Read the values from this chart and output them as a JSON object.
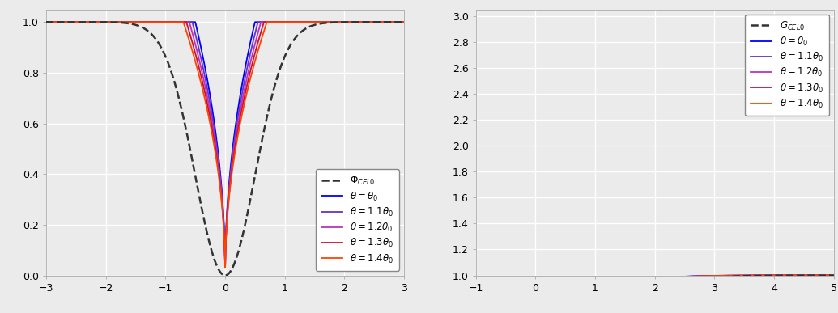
{
  "left_xlim": [
    -3,
    3
  ],
  "left_ylim": [
    0,
    1.05
  ],
  "left_xticks": [
    -3,
    -2,
    -1,
    0,
    1,
    2,
    3
  ],
  "left_yticks": [
    0.0,
    0.2,
    0.4,
    0.6,
    0.8,
    1.0
  ],
  "right_xlim": [
    -1,
    5
  ],
  "right_ylim": [
    1.0,
    3.05
  ],
  "right_xticks": [
    -1,
    0,
    1,
    2,
    3,
    4,
    5
  ],
  "right_yticks": [
    1.0,
    1.2,
    1.4,
    1.6,
    1.8,
    2.0,
    2.2,
    2.4,
    2.6,
    2.8,
    3.0
  ],
  "theta0": 0.5,
  "p": 0.5,
  "thetas_mult": [
    1.0,
    1.1,
    1.2,
    1.3,
    1.4
  ],
  "colors": [
    "#0000FF",
    "#6633CC",
    "#BB33BB",
    "#CC1133",
    "#FF4400"
  ],
  "dashed_color": "#333333",
  "bg_color": "#ebebeb",
  "grid_color": "#ffffff",
  "linewidth": 1.3,
  "dashed_linewidth": 1.8,
  "left_legend_loc": "lower right",
  "right_legend_loc": "upper right"
}
